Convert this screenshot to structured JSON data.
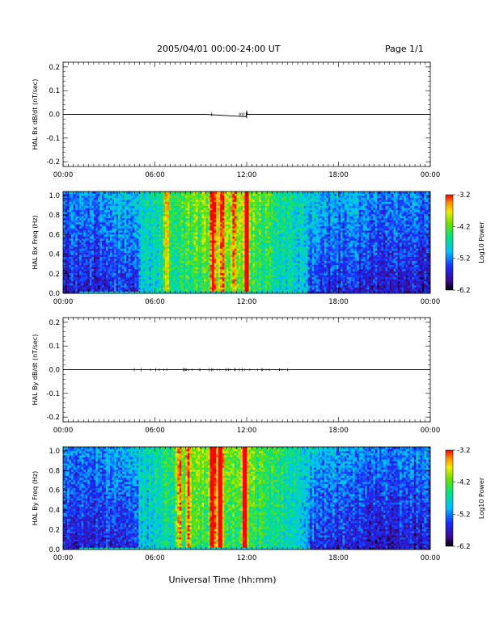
{
  "header": {
    "title": "2005/04/01  00:00-24:00 UT",
    "page": "Page 1/1"
  },
  "xaxis": {
    "label": "Universal Time (hh:mm)",
    "ticks": [
      "00:00",
      "06:00",
      "12:00",
      "18:00",
      "00:00"
    ],
    "range_hours": [
      0,
      24
    ]
  },
  "chart_data": [
    {
      "type": "line",
      "ylabel": "HAL Bx dB/dt (nT/sec)",
      "ylim": [
        -0.22,
        0.22
      ],
      "yticks": [
        "0.2",
        "0.1",
        "0.0",
        "-0.1",
        "-0.2"
      ],
      "series": [
        {
          "x": [
            0,
            9.3,
            11.95,
            12.0,
            12.05,
            13.0,
            24
          ],
          "y": [
            0,
            0,
            -0.01,
            0.012,
            0,
            0,
            0
          ]
        }
      ]
    },
    {
      "type": "heatmap",
      "ylabel": "HAL Bx Freq (Hz)",
      "ylim": [
        0,
        1.04
      ],
      "yticks": [
        "1.0",
        "0.8",
        "0.6",
        "0.4",
        "0.2",
        "0.0"
      ],
      "colorbar": {
        "label": "Log10 Power",
        "ticks": [
          "-3.2",
          "-4.2",
          "-5.2",
          "-6.2"
        ],
        "range": [
          -6.2,
          -3.2
        ]
      },
      "vertical_bands_hours": [
        6.8,
        9.8,
        10.4,
        11.2,
        12.0
      ],
      "active_interval_hours": [
        5.5,
        15.5
      ],
      "peak_hours": [
        9.8,
        12.0
      ]
    },
    {
      "type": "line",
      "ylabel": "HAL By dB/dt (nT/sec)",
      "ylim": [
        -0.22,
        0.22
      ],
      "yticks": [
        "0.2",
        "0.1",
        "0.0",
        "-0.1",
        "-0.2"
      ],
      "series": [
        {
          "x": [
            0,
            4.5,
            15.0,
            24
          ],
          "y": [
            0,
            0,
            0,
            0
          ]
        }
      ]
    },
    {
      "type": "heatmap",
      "ylabel": "HAL By Freq (Hz)",
      "ylim": [
        0,
        1.04
      ],
      "yticks": [
        "1.0",
        "0.8",
        "0.6",
        "0.4",
        "0.2",
        "0.0"
      ],
      "colorbar": {
        "label": "Log10 Power",
        "ticks": [
          "-3.2",
          "-4.2",
          "-5.2",
          "-6.2"
        ],
        "range": [
          -6.2,
          -3.2
        ]
      },
      "vertical_bands_hours": [
        7.6,
        8.2,
        9.8,
        10.3,
        11.9
      ],
      "active_interval_hours": [
        5.5,
        15.5
      ],
      "peak_hours": [
        9.8,
        10.3,
        11.9
      ]
    }
  ]
}
